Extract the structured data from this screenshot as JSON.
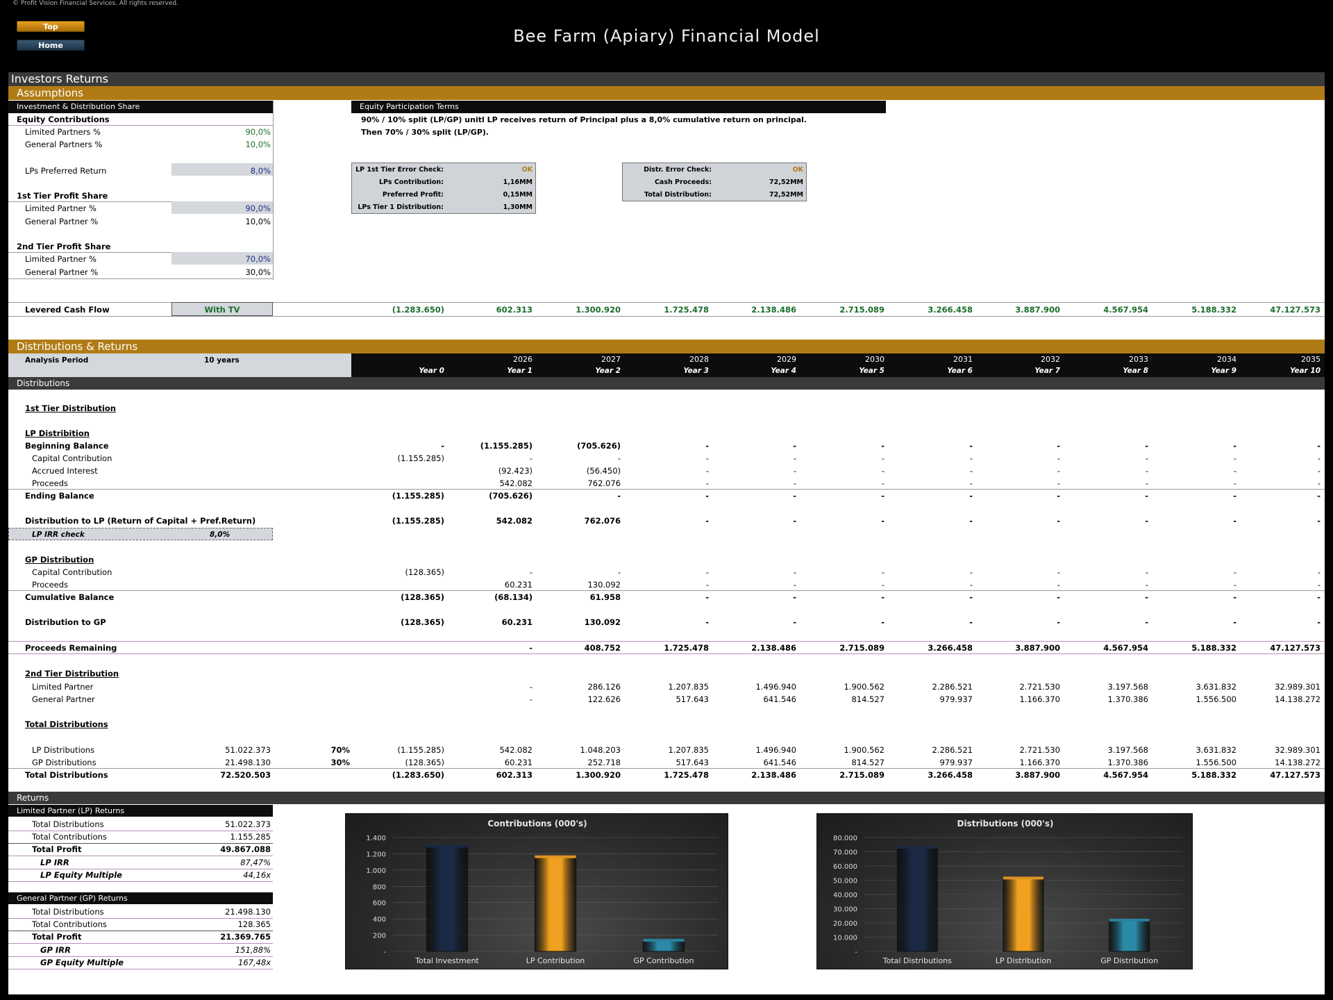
{
  "copyright": "© Profit Vision Financial Services. All rights reserved.",
  "nav": {
    "top": "Top",
    "home": "Home"
  },
  "model_title": "Bee Farm (Apiary) Financial Model",
  "page_section": "Investors Returns",
  "assumptions": {
    "header": "Assumptions",
    "inv_header": "Investment & Distribution Share",
    "equity_contrib_label": "Equity Contributions",
    "lp_pct_label": "Limited Partners %",
    "lp_pct": "90,0%",
    "gp_pct_label": "General Partners %",
    "gp_pct": "10,0%",
    "pref_label": "LPs Preferred Return",
    "pref": "8,0%",
    "tier1_label": "1st Tier Profit Share",
    "t1_lp_label": "Limited Partner %",
    "t1_lp": "90,0%",
    "t1_gp_label": "General Partner %",
    "t1_gp": "10,0%",
    "tier2_label": "2nd Tier Profit Share",
    "t2_lp_label": "Limited Partner %",
    "t2_lp": "70,0%",
    "t2_gp_label": "General Partner %",
    "t2_gp": "30,0%",
    "equity_terms_header": "Equity Participation Terms",
    "terms_line1": "90% / 10% split (LP/GP) unitl LP receives return of Principal plus a 8,0% cumulative return on principal.",
    "terms_line2": "Then 70% / 30% split (LP/GP).",
    "check1": {
      "error_label": "LP 1st Tier Error Check:",
      "error_value": "OK",
      "contrib_label": "LPs Contribution:",
      "contrib_value": "1,16MM",
      "pref_label": "Preferred Profit:",
      "pref_value": "0,15MM",
      "dist_label": "LPs Tier 1 Distribution:",
      "dist_value": "1,30MM"
    },
    "check2": {
      "error_label": "Distr. Error Check:",
      "error_value": "OK",
      "cash_label": "Cash Proceeds:",
      "cash_value": "72,52MM",
      "total_label": "Total Distribution:",
      "total_value": "72,52MM"
    },
    "levered_label": "Levered Cash Flow",
    "levered_option": "With TV",
    "levered_values": [
      "(1.283.650)",
      "602.313",
      "1.300.920",
      "1.725.478",
      "2.138.486",
      "2.715.089",
      "3.266.458",
      "3.887.900",
      "4.567.954",
      "5.188.332",
      "47.127.573"
    ]
  },
  "dist": {
    "header": "Distributions & Returns",
    "analysis_label": "Analysis Period",
    "analysis_value": "10 years",
    "years": [
      "",
      "2026",
      "2027",
      "2028",
      "2029",
      "2030",
      "2031",
      "2032",
      "2033",
      "2034",
      "2035"
    ],
    "year_idx": [
      "Year 0",
      "Year 1",
      "Year 2",
      "Year 3",
      "Year 4",
      "Year 5",
      "Year 6",
      "Year 7",
      "Year 8",
      "Year 9",
      "Year 10"
    ],
    "subheader": "Distributions",
    "tier1_title": "1st Tier Distribution",
    "lp_dist_title": "LP Distribition",
    "gp_dist_title": "GP Distribution",
    "tier2_title": "2nd Tier Distribution",
    "total_title": "Total Distributions",
    "lp_irr_check_label": "LP IRR check",
    "lp_irr_check_value": "8,0%",
    "rows": [
      {
        "label": "Beginning Balance",
        "bold": true,
        "indent": false,
        "vals": [
          "-",
          "(1.155.285)",
          "(705.626)",
          "-",
          "-",
          "-",
          "-",
          "-",
          "-",
          "-",
          "-"
        ]
      },
      {
        "label": "Capital Contribution",
        "bold": false,
        "indent": true,
        "vals": [
          "(1.155.285)",
          "-",
          "-",
          "-",
          "-",
          "-",
          "-",
          "-",
          "-",
          "-",
          "-"
        ]
      },
      {
        "label": "Accrued Interest",
        "bold": false,
        "indent": true,
        "vals": [
          "",
          "(92.423)",
          "(56.450)",
          "-",
          "-",
          "-",
          "-",
          "-",
          "-",
          "-",
          "-"
        ]
      },
      {
        "label": "Proceeds",
        "bold": false,
        "indent": true,
        "vals": [
          "",
          "542.082",
          "762.076",
          "-",
          "-",
          "-",
          "-",
          "-",
          "-",
          "-",
          "-"
        ]
      },
      {
        "label": "Ending Balance",
        "bold": true,
        "indent": false,
        "vals": [
          "(1.155.285)",
          "(705.626)",
          "-",
          "-",
          "-",
          "-",
          "-",
          "-",
          "-",
          "-",
          "-"
        ]
      },
      {
        "label": "Distribution to LP (Return of Capital + Pref.Return)",
        "bold": true,
        "indent": false,
        "vals": [
          "(1.155.285)",
          "542.082",
          "762.076",
          "-",
          "-",
          "-",
          "-",
          "-",
          "-",
          "-",
          "-"
        ]
      },
      {
        "label": "Capital Contribution",
        "bold": false,
        "indent": true,
        "vals": [
          "(128.365)",
          "-",
          "-",
          "-",
          "-",
          "-",
          "-",
          "-",
          "-",
          "-",
          "-"
        ]
      },
      {
        "label": "Proceeds",
        "bold": false,
        "indent": true,
        "vals": [
          "",
          "60.231",
          "130.092",
          "-",
          "-",
          "-",
          "-",
          "-",
          "-",
          "-",
          "-"
        ]
      },
      {
        "label": "Cumulative Balance",
        "bold": true,
        "indent": false,
        "vals": [
          "(128.365)",
          "(68.134)",
          "61.958",
          "-",
          "-",
          "-",
          "-",
          "-",
          "-",
          "-",
          "-"
        ]
      },
      {
        "label": "Distribution to GP",
        "bold": true,
        "indent": false,
        "vals": [
          "(128.365)",
          "60.231",
          "130.092",
          "-",
          "-",
          "-",
          "-",
          "-",
          "-",
          "-",
          "-"
        ]
      },
      {
        "label": "Proceeds Remaining",
        "bold": true,
        "indent": false,
        "vals": [
          "",
          "-",
          "408.752",
          "1.725.478",
          "2.138.486",
          "2.715.089",
          "3.266.458",
          "3.887.900",
          "4.567.954",
          "5.188.332",
          "47.127.573"
        ]
      },
      {
        "label": "Limited Partner",
        "bold": false,
        "indent": true,
        "vals": [
          "",
          "-",
          "286.126",
          "1.207.835",
          "1.496.940",
          "1.900.562",
          "2.286.521",
          "2.721.530",
          "3.197.568",
          "3.631.832",
          "32.989.301"
        ]
      },
      {
        "label": "General Partner",
        "bold": false,
        "indent": true,
        "vals": [
          "",
          "-",
          "122.626",
          "517.643",
          "641.546",
          "814.527",
          "979.937",
          "1.166.370",
          "1.370.386",
          "1.556.500",
          "14.138.272"
        ]
      },
      {
        "label": "LP Distributions",
        "bold": false,
        "indent": true,
        "total": "51.022.373",
        "pct": "70%",
        "vals": [
          "(1.155.285)",
          "542.082",
          "1.048.203",
          "1.207.835",
          "1.496.940",
          "1.900.562",
          "2.286.521",
          "2.721.530",
          "3.197.568",
          "3.631.832",
          "32.989.301"
        ]
      },
      {
        "label": "GP Distributions",
        "bold": false,
        "indent": true,
        "total": "21.498.130",
        "pct": "30%",
        "vals": [
          "(128.365)",
          "60.231",
          "252.718",
          "517.643",
          "641.546",
          "814.527",
          "979.937",
          "1.166.370",
          "1.370.386",
          "1.556.500",
          "14.138.272"
        ]
      },
      {
        "label": "Total Distributions",
        "bold": true,
        "indent": false,
        "total": "72.520.503",
        "vals": [
          "(1.283.650)",
          "602.313",
          "1.300.920",
          "1.725.478",
          "2.138.486",
          "2.715.089",
          "3.266.458",
          "3.887.900",
          "4.567.954",
          "5.188.332",
          "47.127.573"
        ]
      }
    ]
  },
  "returns": {
    "header": "Returns",
    "lp_header": "Limited Partner (LP) Returns",
    "lp_rows": [
      {
        "label": "Total Distributions",
        "value": "51.022.373",
        "style": "n"
      },
      {
        "label": "Total Contributions",
        "value": "1.155.285",
        "style": "n"
      },
      {
        "label": "Total Profit",
        "value": "49.867.088",
        "style": "b"
      },
      {
        "label": "LP IRR",
        "value": "87,47%",
        "style": "i"
      },
      {
        "label": "LP Equity Multiple",
        "value": "44,16x",
        "style": "i"
      }
    ],
    "gp_header": "General Partner (GP) Returns",
    "gp_rows": [
      {
        "label": "Total Distributions",
        "value": "21.498.130",
        "style": "n"
      },
      {
        "label": "Total Contributions",
        "value": "128.365",
        "style": "n"
      },
      {
        "label": "Total Profit",
        "value": "21.369.765",
        "style": "b"
      },
      {
        "label": "GP IRR",
        "value": "151,88%",
        "style": "i"
      },
      {
        "label": "GP Equity Multiple",
        "value": "167,48x",
        "style": "i"
      }
    ]
  },
  "chart_data": [
    {
      "type": "bar",
      "title": "Contributions (000's)",
      "categories": [
        "Total Investment",
        "LP Contribution",
        "GP Contribution"
      ],
      "values": [
        1284,
        1155,
        128
      ],
      "ylim": [
        0,
        1400
      ],
      "ticks": [
        0,
        200,
        400,
        600,
        800,
        1000,
        1200,
        1400
      ],
      "tick_labels": [
        "-",
        "200",
        "400",
        "600",
        "800",
        "1.000",
        "1.200",
        "1.400"
      ],
      "colors": [
        "#1a2a45",
        "#f0a020",
        "#2a8aa8"
      ],
      "grid": true
    },
    {
      "type": "bar",
      "title": "Distributions (000's)",
      "categories": [
        "Total Distributions",
        "LP Distribution",
        "GP Distribution"
      ],
      "values": [
        72521,
        51022,
        21498
      ],
      "ylim": [
        0,
        80000
      ],
      "ticks": [
        0,
        10000,
        20000,
        30000,
        40000,
        50000,
        60000,
        70000,
        80000
      ],
      "tick_labels": [
        "-",
        "10.000",
        "20.000",
        "30.000",
        "40.000",
        "50.000",
        "60.000",
        "70.000",
        "80.000"
      ],
      "colors": [
        "#1a2a45",
        "#f0a020",
        "#2a8aa8"
      ],
      "grid": true
    }
  ]
}
